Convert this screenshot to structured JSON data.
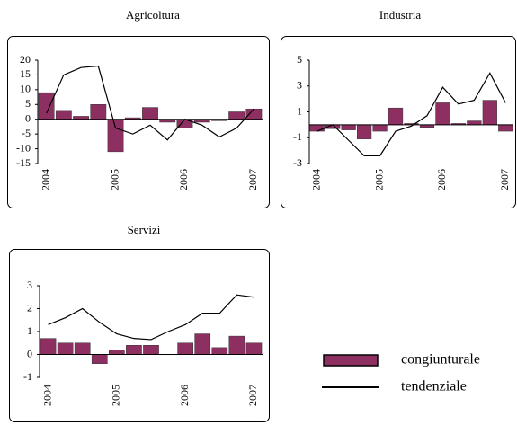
{
  "chart_data": [
    {
      "type": "bar_line",
      "title": "Agricoltura",
      "categories": [
        "2004",
        null,
        null,
        null,
        "2005",
        null,
        null,
        null,
        "2006",
        null,
        null,
        null,
        "2007"
      ],
      "series": [
        {
          "name": "congiunturale",
          "type": "bar",
          "color": "#8e2f62",
          "values": [
            9,
            3,
            1,
            5,
            -11,
            0.5,
            4,
            -1,
            -3,
            -1,
            -0.5,
            2.5,
            3.5
          ]
        },
        {
          "name": "tendenziale",
          "type": "line",
          "color": "#000000",
          "values": [
            2,
            15,
            17.5,
            18,
            -3,
            -5,
            -2,
            -7,
            0,
            -2,
            -6,
            -3,
            3.5
          ]
        }
      ],
      "ylim": [
        -15,
        20
      ],
      "yticks": [
        -15,
        -10,
        -5,
        0,
        5,
        10,
        15,
        20
      ]
    },
    {
      "type": "bar_line",
      "title": "Industria",
      "categories": [
        "2004",
        null,
        null,
        null,
        "2005",
        null,
        null,
        null,
        "2006",
        null,
        null,
        null,
        "2007"
      ],
      "series": [
        {
          "name": "congiunturale",
          "type": "bar",
          "color": "#8e2f62",
          "values": [
            -0.5,
            -0.3,
            -0.4,
            -1.1,
            -0.5,
            1.3,
            0.1,
            -0.2,
            1.7,
            0.1,
            0.3,
            1.9,
            -0.5
          ]
        },
        {
          "name": "tendenziale",
          "type": "line",
          "color": "#000000",
          "values": [
            -0.5,
            0,
            -1.2,
            -2.4,
            -2.4,
            -0.5,
            -0.1,
            0.7,
            2.9,
            1.6,
            1.9,
            4,
            1.7
          ]
        }
      ],
      "ylim": [
        -3,
        5
      ],
      "yticks": [
        -3,
        -1,
        1,
        3,
        5
      ]
    },
    {
      "type": "bar_line",
      "title": "Servizi",
      "categories": [
        "2004",
        null,
        null,
        null,
        "2005",
        null,
        null,
        null,
        "2006",
        null,
        null,
        null,
        "2007"
      ],
      "series": [
        {
          "name": "congiunturale",
          "type": "bar",
          "color": "#8e2f62",
          "values": [
            0.7,
            0.5,
            0.5,
            -0.4,
            0.2,
            0.4,
            0.4,
            0,
            0.5,
            0.9,
            0.3,
            0.8,
            0.5
          ]
        },
        {
          "name": "tendenziale",
          "type": "line",
          "color": "#000000",
          "values": [
            1.3,
            1.6,
            2.0,
            1.4,
            0.9,
            0.7,
            0.65,
            1.0,
            1.3,
            1.8,
            1.8,
            2.6,
            2.5
          ]
        }
      ],
      "ylim": [
        -1,
        3
      ],
      "yticks": [
        -1,
        0,
        1,
        2,
        3
      ]
    }
  ]
}
